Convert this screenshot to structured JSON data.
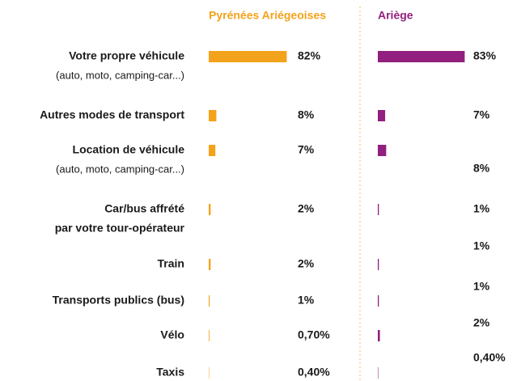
{
  "chart_data": {
    "type": "bar",
    "orientation": "horizontal",
    "categories": [
      "Votre propre véhicule",
      "Autres modes de transport",
      "Location de véhicule",
      "Car/bus affrété",
      "Train",
      "Transports publics (bus)",
      "Vélo",
      "Taxis"
    ],
    "category_notes": [
      "(auto, moto, camping-car...)",
      null,
      "(auto, moto, camping-car...)",
      "par votre tour-opérateur",
      null,
      null,
      null,
      null
    ],
    "xlim": [
      0,
      85
    ],
    "series": [
      {
        "name": "Pyrénées Ariégeoises",
        "color": "#f3a31b",
        "values": [
          82,
          8,
          7,
          2,
          2,
          1,
          0.7,
          0.4
        ],
        "value_labels": [
          "82%",
          "8%",
          "7%",
          "2%",
          "2%",
          "1%",
          "0,70%",
          "0,40%"
        ]
      },
      {
        "name": "Ariège",
        "color": "#92207e",
        "values": [
          83,
          7,
          8,
          1,
          1,
          1,
          2,
          0.4
        ],
        "value_labels": [
          "83%",
          "7%",
          "8%",
          "1%",
          "1%",
          "1%",
          "2%",
          "0,40%"
        ]
      }
    ]
  }
}
